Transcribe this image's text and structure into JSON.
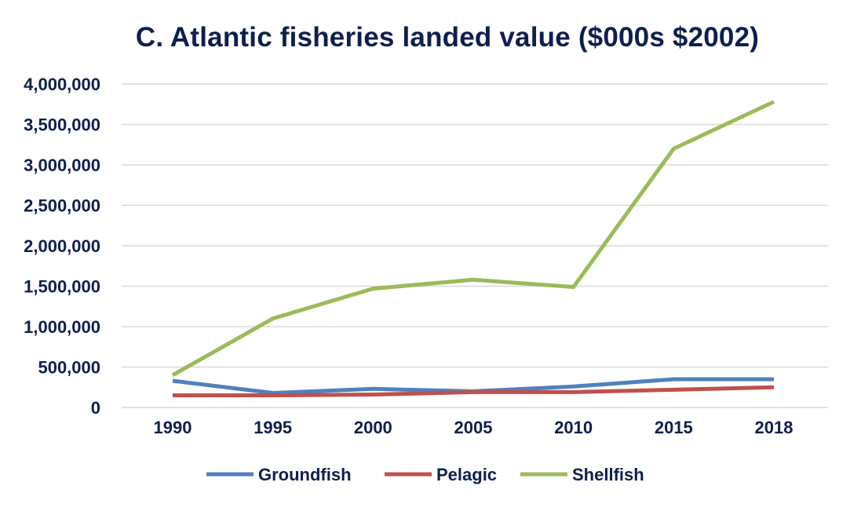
{
  "chart_data": {
    "type": "line",
    "title": "C. Atlantic fisheries landed value ($000s $2002)",
    "xlabel": "",
    "ylabel": "",
    "categories": [
      "1990",
      "1995",
      "2000",
      "2005",
      "2010",
      "2015",
      "2018"
    ],
    "y_ticks": [
      "0",
      "500,000",
      "1,000,000",
      "1,500,000",
      "2,000,000",
      "2,500,000",
      "3,000,000",
      "3,500,000",
      "4,000,000"
    ],
    "ylim": [
      0,
      4000000
    ],
    "grid": true,
    "legend": "bottom",
    "series": [
      {
        "name": "Groundfish",
        "color": "#4f81bd",
        "values": [
          330000,
          180000,
          230000,
          200000,
          260000,
          350000,
          350000
        ]
      },
      {
        "name": "Pelagic",
        "color": "#c0504d",
        "values": [
          150000,
          150000,
          160000,
          190000,
          190000,
          220000,
          250000
        ]
      },
      {
        "name": "Shellfish",
        "color": "#9bbb59",
        "values": [
          400000,
          1100000,
          1470000,
          1580000,
          1490000,
          3200000,
          3780000
        ]
      }
    ]
  }
}
